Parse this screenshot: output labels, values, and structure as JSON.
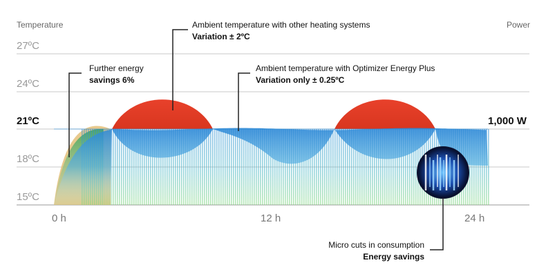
{
  "header": {
    "left_label": "Temperature",
    "right_label": "Power"
  },
  "y_axis": {
    "ticks": [
      "27ºC",
      "24ºC",
      "21ºC",
      "18ºC",
      "15ºC"
    ],
    "highlighted_tick": "21ºC"
  },
  "x_axis": {
    "ticks": [
      "0 h",
      "12 h",
      "24 h"
    ]
  },
  "power": {
    "value_label": "1,000 W"
  },
  "annotations": {
    "other_systems": {
      "line1": "Ambient temperature with other heating systems",
      "line2": "Variation ± 2ºC"
    },
    "optimizer": {
      "line1": "Ambient temperature with Optimizer Energy Plus",
      "line2": "Variation only ± 0.25ºC"
    },
    "further_savings": {
      "line1": "Further energy",
      "line2": "savings 6%"
    },
    "micro_cuts": {
      "line1": "Micro cuts in consumption",
      "line2": "Energy savings"
    }
  },
  "colors": {
    "other_systems_curve": "#e8412b",
    "optimizer_area": "#2f8fd6",
    "power_bars": "#3aa9c9",
    "further_savings_curve": "#e4c079",
    "grid": "#c8c8c8"
  }
}
